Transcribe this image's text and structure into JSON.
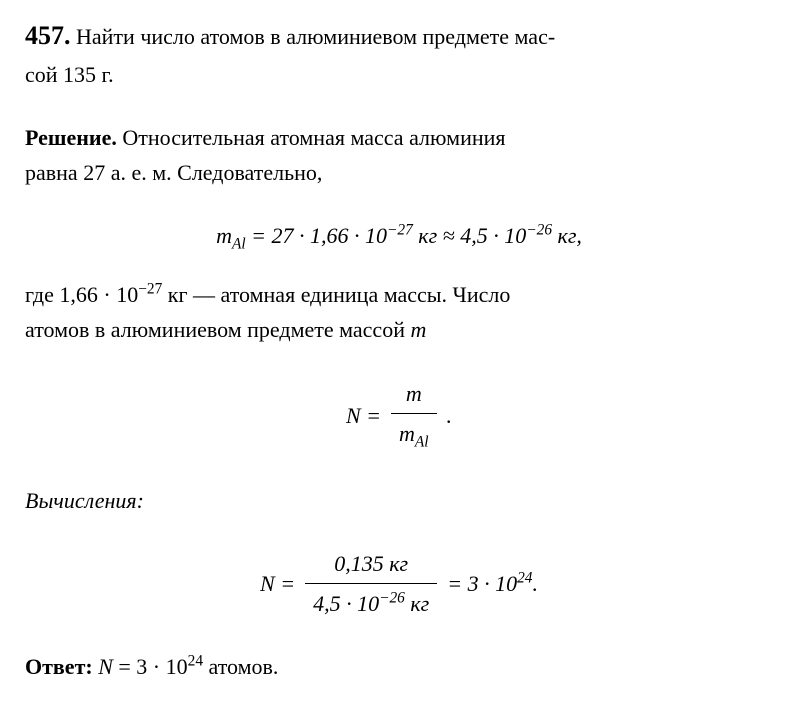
{
  "problem": {
    "number": "457.",
    "text_part1": " Найти число атомов в алюминиевом предмете мас-",
    "text_part2": "сой 135 г."
  },
  "solution": {
    "label": "Решение.",
    "intro_part1": " Относительная атомная масса алюминия",
    "intro_part2": "равна 27 а. е. м. Следовательно,",
    "formula1": {
      "prefix": "m",
      "sub": "Al",
      "eq": " = 27 · 1,66 · 10",
      "exp1": "−27",
      "mid": " кг ≈ 4,5 · 10",
      "exp2": "−26",
      "suffix": " кг,"
    },
    "where_part1": "где 1,66 · 10",
    "where_exp": "−27",
    "where_part2": " кг — атомная единица массы. Число",
    "where_part3": "атомов в алюминиевом предмете массой ",
    "where_m": "m",
    "formula2": {
      "lhs": "N = ",
      "num": "m",
      "den_prefix": "m",
      "den_sub": "Al",
      "period": " ."
    }
  },
  "calculations": {
    "label": "Вычисления:",
    "formula": {
      "lhs": "N = ",
      "num": "0,135 кг",
      "den_part1": "4,5 · 10",
      "den_exp": "−26",
      "den_part2": " кг",
      "result_part1": " = 3 · 10",
      "result_exp": "24",
      "result_part2": "."
    }
  },
  "answer": {
    "label": "Ответ: ",
    "value_prefix": "N",
    "value_eq": " = 3 · 10",
    "value_exp": "24",
    "value_suffix": " атомов."
  },
  "colors": {
    "text": "#000000",
    "background": "#ffffff"
  },
  "typography": {
    "base_fontsize": 22,
    "number_fontsize": 26,
    "font_family": "Georgia, Times New Roman, serif"
  }
}
